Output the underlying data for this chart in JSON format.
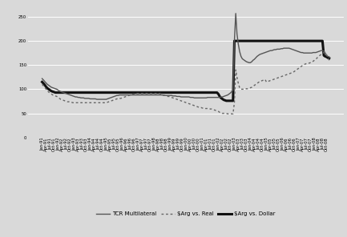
{
  "ylim": [
    0,
    275
  ],
  "yticks": [
    0,
    50,
    100,
    150,
    200,
    250
  ],
  "bg_color": "#d9d9d9",
  "line_color_multilateral": "#555555",
  "line_color_real": "#666666",
  "line_color_dollar": "#111111",
  "grid_color": "#ffffff",
  "tick_fontsize": 3.8,
  "months_per_tick": 3,
  "start_year": 1991,
  "start_month": 1,
  "n_points": 216,
  "tcr_multilateral": [
    122,
    119,
    116,
    113,
    110,
    108,
    106,
    104,
    103,
    102,
    101,
    100,
    98,
    96,
    95,
    94,
    93,
    92,
    91,
    90,
    89,
    88,
    87,
    86,
    85,
    84,
    84,
    83,
    83,
    82,
    82,
    82,
    81,
    81,
    81,
    81,
    80,
    80,
    80,
    80,
    80,
    79,
    79,
    79,
    79,
    79,
    79,
    79,
    79,
    80,
    81,
    82,
    83,
    84,
    85,
    86,
    87,
    87,
    88,
    88,
    88,
    88,
    88,
    88,
    88,
    88,
    88,
    88,
    88,
    88,
    88,
    88,
    88,
    88,
    88,
    88,
    88,
    88,
    88,
    88,
    88,
    88,
    88,
    88,
    88,
    88,
    88,
    88,
    88,
    88,
    88,
    87,
    87,
    87,
    87,
    87,
    87,
    87,
    86,
    86,
    86,
    85,
    85,
    85,
    84,
    84,
    84,
    84,
    84,
    84,
    84,
    83,
    83,
    83,
    82,
    82,
    82,
    82,
    82,
    82,
    82,
    82,
    82,
    82,
    83,
    83,
    83,
    83,
    83,
    83,
    83,
    83,
    83,
    83,
    84,
    84,
    85,
    86,
    87,
    88,
    90,
    92,
    95,
    98,
    200,
    257,
    215,
    193,
    178,
    168,
    163,
    161,
    159,
    157,
    156,
    155,
    155,
    157,
    160,
    162,
    165,
    168,
    170,
    172,
    173,
    174,
    175,
    176,
    177,
    178,
    179,
    180,
    180,
    181,
    182,
    182,
    183,
    183,
    183,
    184,
    184,
    185,
    185,
    185,
    185,
    185,
    184,
    183,
    182,
    181,
    180,
    179,
    178,
    177,
    176,
    176,
    175,
    175,
    175,
    175,
    175,
    175,
    175,
    176,
    176,
    176,
    177,
    178,
    179,
    180,
    180,
    179,
    175,
    170,
    168,
    167
  ],
  "arg_vs_real": [
    110,
    107,
    104,
    100,
    97,
    94,
    92,
    90,
    88,
    87,
    86,
    85,
    83,
    81,
    79,
    78,
    77,
    76,
    75,
    74,
    74,
    73,
    73,
    72,
    72,
    72,
    72,
    72,
    72,
    72,
    72,
    72,
    72,
    72,
    72,
    72,
    72,
    72,
    72,
    72,
    72,
    72,
    72,
    72,
    72,
    72,
    72,
    72,
    72,
    73,
    74,
    75,
    76,
    77,
    78,
    79,
    80,
    80,
    81,
    81,
    82,
    83,
    84,
    85,
    86,
    87,
    88,
    89,
    90,
    90,
    91,
    91,
    91,
    91,
    91,
    91,
    91,
    91,
    91,
    91,
    91,
    91,
    91,
    91,
    91,
    91,
    91,
    91,
    91,
    90,
    89,
    88,
    87,
    86,
    85,
    85,
    84,
    83,
    82,
    81,
    80,
    79,
    78,
    77,
    76,
    75,
    74,
    73,
    72,
    71,
    70,
    69,
    68,
    67,
    66,
    65,
    64,
    63,
    62,
    62,
    61,
    60,
    60,
    60,
    60,
    60,
    59,
    59,
    58,
    57,
    56,
    55,
    54,
    52,
    51,
    50,
    50,
    50,
    50,
    49,
    49,
    49,
    49,
    49,
    72,
    140,
    125,
    112,
    103,
    100,
    100,
    100,
    100,
    101,
    101,
    102,
    103,
    104,
    106,
    108,
    110,
    112,
    114,
    116,
    117,
    118,
    119,
    120,
    115,
    116,
    117,
    118,
    119,
    120,
    121,
    122,
    123,
    124,
    125,
    126,
    127,
    128,
    129,
    130,
    131,
    132,
    133,
    134,
    135,
    137,
    139,
    141,
    143,
    145,
    147,
    149,
    151,
    152,
    153,
    154,
    154,
    155,
    156,
    158,
    160,
    162,
    165,
    168,
    170,
    172,
    174,
    176,
    175,
    172,
    165,
    160
  ],
  "arg_vs_dollar": [
    115,
    112,
    109,
    105,
    102,
    100,
    98,
    96,
    95,
    94,
    93,
    93,
    93,
    93,
    93,
    93,
    93,
    93,
    93,
    93,
    93,
    93,
    93,
    93,
    93,
    93,
    93,
    93,
    93,
    93,
    93,
    93,
    93,
    93,
    93,
    93,
    93,
    93,
    93,
    93,
    93,
    93,
    93,
    93,
    93,
    93,
    93,
    93,
    93,
    93,
    93,
    93,
    93,
    93,
    93,
    93,
    93,
    93,
    93,
    93,
    93,
    93,
    93,
    93,
    93,
    93,
    93,
    93,
    93,
    93,
    93,
    93,
    93,
    93,
    93,
    93,
    93,
    93,
    93,
    93,
    93,
    93,
    93,
    93,
    93,
    93,
    93,
    93,
    93,
    93,
    93,
    93,
    93,
    93,
    93,
    93,
    93,
    93,
    93,
    93,
    93,
    93,
    93,
    93,
    93,
    93,
    93,
    93,
    93,
    93,
    93,
    93,
    93,
    93,
    93,
    93,
    93,
    93,
    93,
    93,
    93,
    93,
    93,
    93,
    93,
    93,
    93,
    93,
    93,
    93,
    93,
    93,
    90,
    85,
    82,
    80,
    78,
    77,
    76,
    76,
    76,
    76,
    76,
    76,
    200,
    200,
    200,
    200,
    200,
    200,
    200,
    200,
    200,
    200,
    200,
    200,
    200,
    200,
    200,
    200,
    200,
    200,
    200,
    200,
    200,
    200,
    200,
    200,
    200,
    200,
    200,
    200,
    200,
    200,
    200,
    200,
    200,
    200,
    200,
    200,
    200,
    200,
    200,
    200,
    200,
    200,
    200,
    200,
    200,
    200,
    200,
    200,
    200,
    200,
    200,
    200,
    200,
    200,
    200,
    200,
    200,
    200,
    200,
    200,
    200,
    200,
    200,
    200,
    200,
    200,
    200,
    170,
    168,
    167,
    165,
    164
  ]
}
